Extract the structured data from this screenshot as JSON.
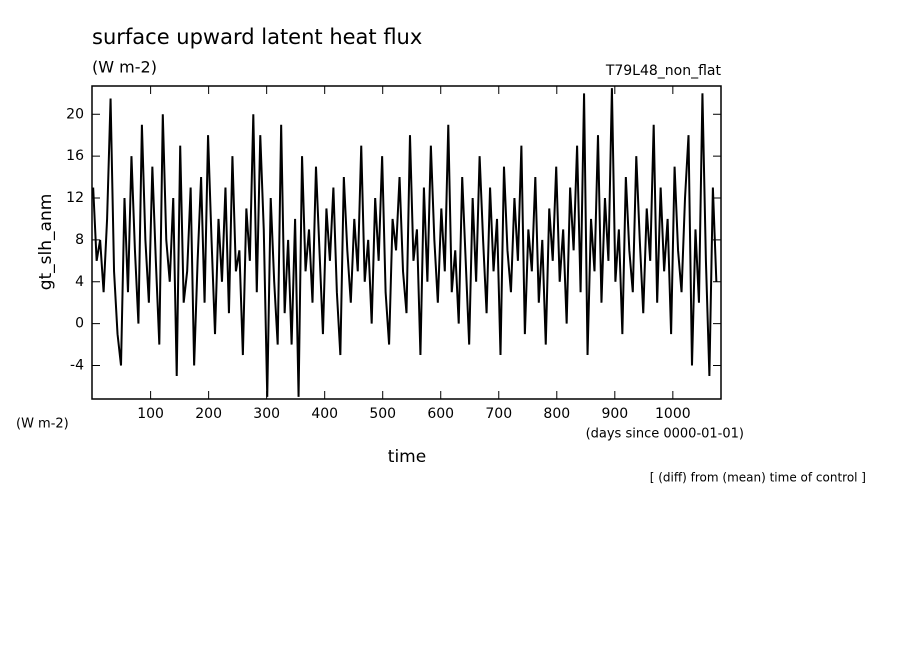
{
  "chart_data": {
    "type": "line",
    "title": "surface upward latent heat flux",
    "units_top": "(W m-2)",
    "run_label": "T79L48_non_flat",
    "y_label": "gt_slh_anm",
    "units_left": "(W m-2)",
    "x_label": "time",
    "x_units": "(days since 0000-01-01)",
    "note": "[ (diff) from (mean) time of control ]",
    "color": "#000000",
    "xlim": [
      -1,
      1083
    ],
    "ylim": [
      -7.2,
      22.7
    ],
    "xticks": [
      100,
      200,
      300,
      400,
      500,
      600,
      700,
      800,
      900,
      1000
    ],
    "yticks": [
      -4,
      0,
      4,
      8,
      12,
      16,
      20
    ],
    "x": [
      1,
      7,
      13,
      19,
      25,
      31,
      37,
      43,
      49,
      55,
      61,
      67,
      73,
      79,
      85,
      91,
      97,
      103,
      109,
      115,
      121,
      127,
      133,
      139,
      145,
      151,
      157,
      163,
      169,
      175,
      181,
      187,
      193,
      199,
      205,
      211,
      217,
      223,
      229,
      235,
      241,
      247,
      253,
      259,
      265,
      271,
      277,
      283,
      289,
      295,
      301,
      307,
      313,
      319,
      325,
      331,
      337,
      343,
      349,
      355,
      361,
      367,
      373,
      379,
      385,
      391,
      397,
      403,
      409,
      415,
      421,
      427,
      433,
      439,
      445,
      451,
      457,
      463,
      469,
      475,
      481,
      487,
      493,
      499,
      505,
      511,
      517,
      523,
      529,
      535,
      541,
      547,
      553,
      559,
      565,
      571,
      577,
      583,
      589,
      595,
      601,
      607,
      613,
      619,
      625,
      631,
      637,
      643,
      649,
      655,
      661,
      667,
      673,
      679,
      685,
      691,
      697,
      703,
      709,
      715,
      721,
      727,
      733,
      739,
      745,
      751,
      757,
      763,
      769,
      775,
      781,
      787,
      793,
      799,
      805,
      811,
      817,
      823,
      829,
      835,
      841,
      847,
      853,
      859,
      865,
      871,
      877,
      883,
      889,
      895,
      901,
      907,
      913,
      919,
      925,
      931,
      937,
      943,
      949,
      955,
      961,
      967,
      973,
      979,
      985,
      991,
      997,
      1003,
      1009,
      1015,
      1021,
      1027,
      1033,
      1039,
      1045,
      1051,
      1057,
      1063,
      1069,
      1075
    ],
    "values": [
      13,
      6,
      8,
      3,
      10,
      21.5,
      5,
      -1,
      -4,
      12,
      3,
      16,
      7,
      0,
      19,
      8,
      2,
      15,
      6,
      -2,
      20,
      8,
      4,
      12,
      -5,
      17,
      2,
      5,
      13,
      -4,
      6,
      14,
      2,
      18,
      8,
      -1,
      10,
      4,
      13,
      1,
      16,
      5,
      7,
      -3,
      11,
      6,
      20,
      3,
      18,
      9,
      -7,
      12,
      4,
      -2,
      19,
      1,
      8,
      -2,
      10,
      -7,
      16,
      5,
      9,
      2,
      15,
      7,
      -1,
      11,
      6,
      13,
      3,
      -3,
      14,
      7,
      2,
      10,
      5,
      17,
      4,
      8,
      0,
      12,
      6,
      16,
      3,
      -2,
      10,
      7,
      14,
      5,
      1,
      18,
      6,
      9,
      -3,
      13,
      4,
      17,
      8,
      2,
      11,
      5,
      19,
      3,
      7,
      0,
      14,
      6,
      -2,
      12,
      4,
      16,
      8,
      1,
      13,
      5,
      10,
      -3,
      15,
      7,
      3,
      12,
      6,
      17,
      -1,
      9,
      5,
      14,
      2,
      8,
      -2,
      11,
      6,
      15,
      4,
      9,
      0,
      13,
      7,
      17,
      3,
      22,
      -3,
      10,
      5,
      18,
      2,
      12,
      6,
      22.5,
      4,
      9,
      -1,
      14,
      7,
      3,
      16,
      8,
      1,
      11,
      6,
      19,
      2,
      13,
      5,
      10,
      -1,
      15,
      7,
      3,
      12,
      18,
      -4,
      9,
      2,
      22,
      6,
      -5,
      13,
      4
    ]
  }
}
